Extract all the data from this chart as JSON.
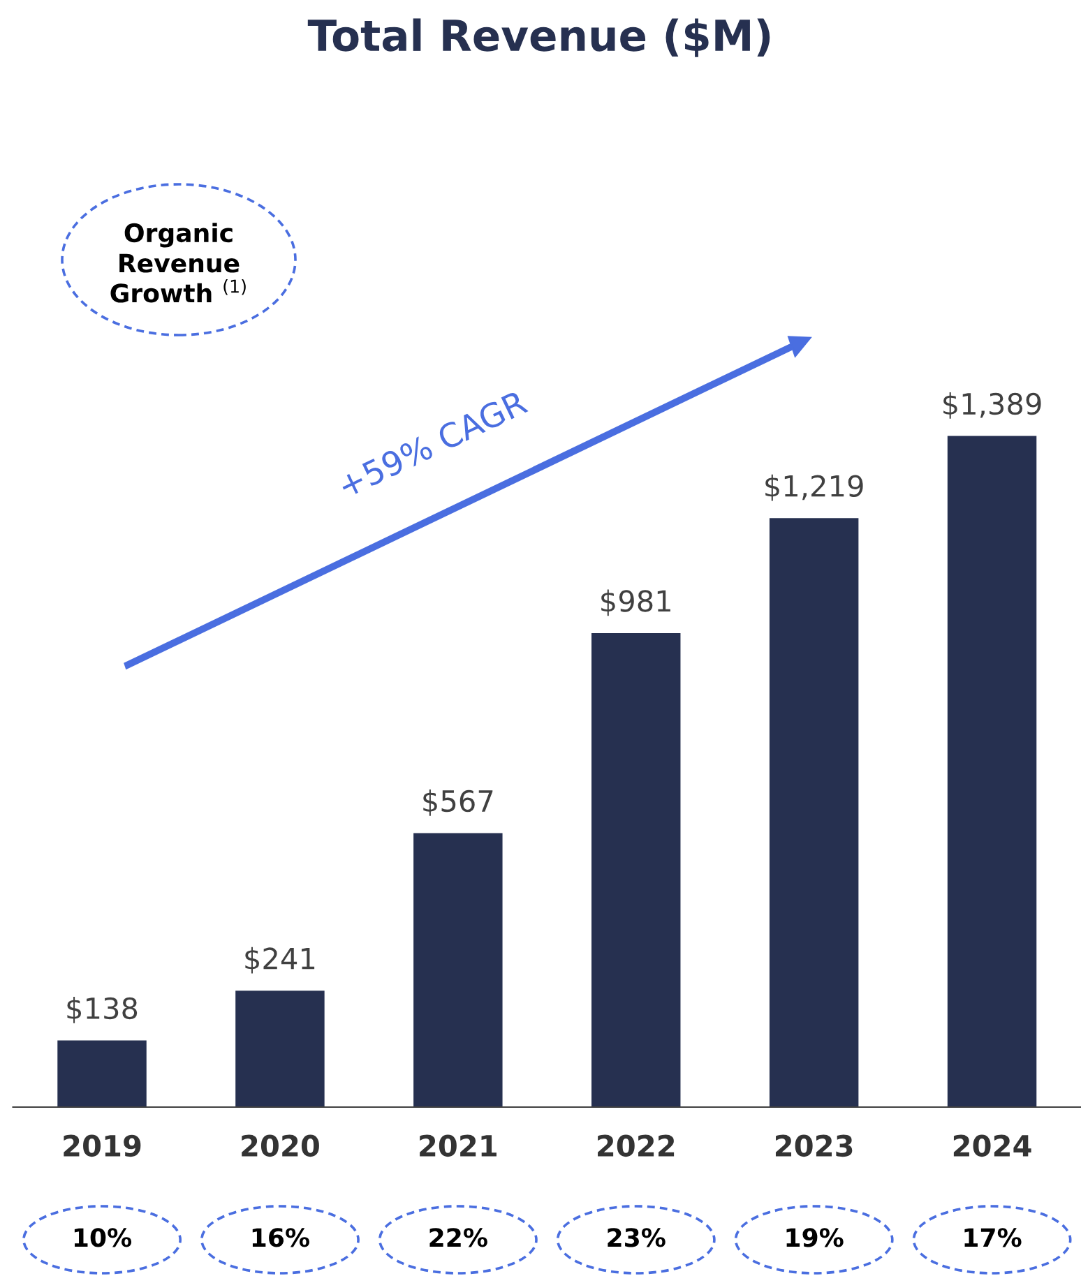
{
  "chart_data": {
    "type": "bar",
    "title": "Total Revenue ($M)",
    "categories": [
      "2019",
      "2020",
      "2021",
      "2022",
      "2023",
      "2024"
    ],
    "values": [
      138,
      241,
      567,
      981,
      1219,
      1389
    ],
    "value_labels": [
      "$138",
      "$241",
      "$567",
      "$981",
      "$1,219",
      "$1,389"
    ],
    "color": "#263050",
    "grid": false,
    "legend": false,
    "annotations": [
      "+59% CAGR",
      "Organic\nRevenue\nGrowth $^{(1)}$",
      "10%",
      "16%",
      "22%",
      "23%",
      "19%",
      "17%"
    ]
  }
}
